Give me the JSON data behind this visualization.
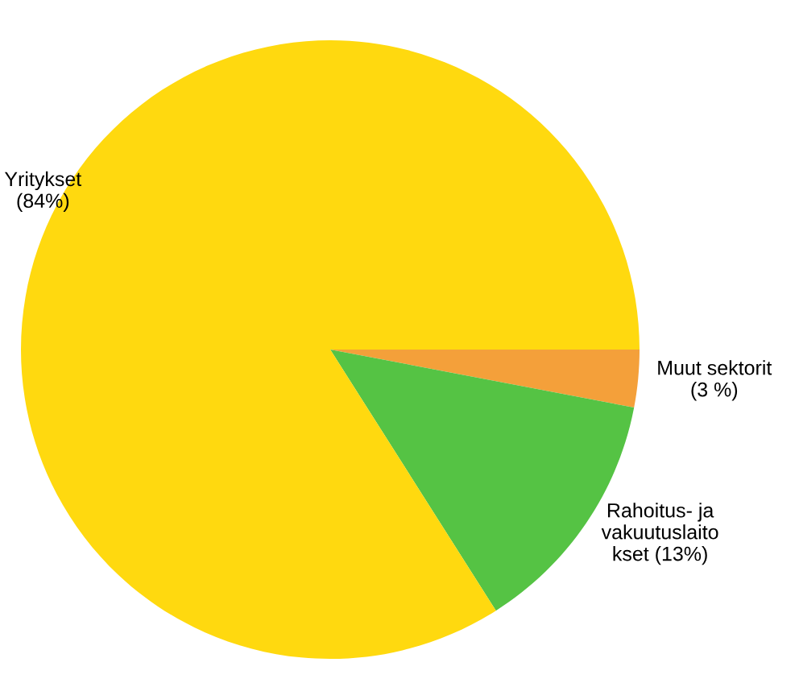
{
  "chart_data": {
    "type": "pie",
    "categories": [
      "Muut sektorit",
      "Rahoitus- ja\nvakuutuslaito\nkset",
      "Yritykset"
    ],
    "values": [
      3,
      13,
      84
    ],
    "value_labels": [
      "(3 %)",
      "(13%)",
      "(84%)"
    ],
    "colors": [
      "#f4a03a",
      "#55c344",
      "#ffd90f"
    ]
  }
}
